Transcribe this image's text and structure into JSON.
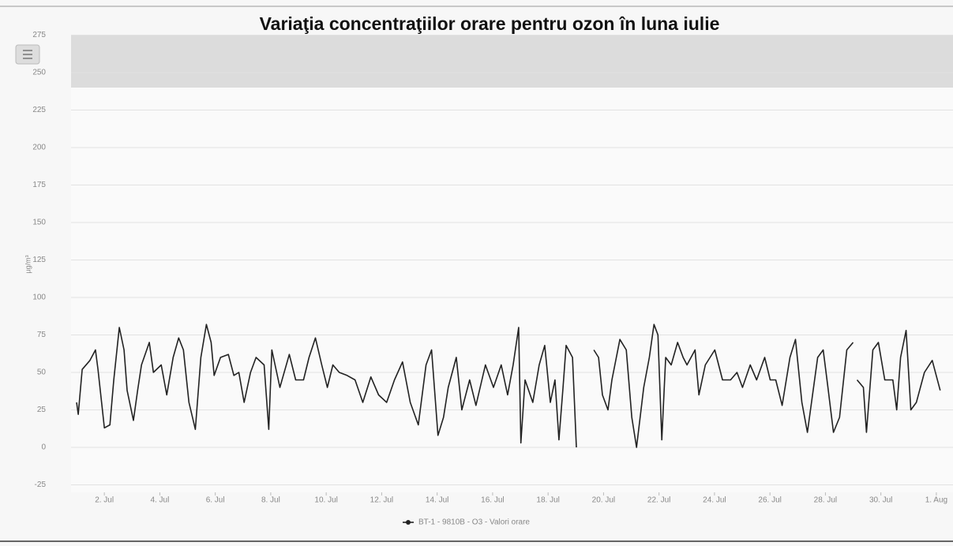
{
  "chart_data": {
    "type": "line",
    "title": "Variaţia concentraţiilor orare pentru ozon în luna iulie",
    "y_label": "µg/m³",
    "ylim": [
      -30,
      275
    ],
    "yticks": [
      -25,
      0,
      25,
      50,
      75,
      100,
      125,
      150,
      175,
      200,
      225,
      250,
      275
    ],
    "xlim": [
      0.8,
      32.6
    ],
    "xticks": [
      {
        "value": 2,
        "label": "2. Jul"
      },
      {
        "value": 4,
        "label": "4. Jul"
      },
      {
        "value": 6,
        "label": "6. Jul"
      },
      {
        "value": 8,
        "label": "8. Jul"
      },
      {
        "value": 10,
        "label": "10. Jul"
      },
      {
        "value": 12,
        "label": "12. Jul"
      },
      {
        "value": 14,
        "label": "14. Jul"
      },
      {
        "value": 16,
        "label": "16. Jul"
      },
      {
        "value": 18,
        "label": "18. Jul"
      },
      {
        "value": 20,
        "label": "20. Jul"
      },
      {
        "value": 22,
        "label": "22. Jul"
      },
      {
        "value": 24,
        "label": "24. Jul"
      },
      {
        "value": 26,
        "label": "26. Jul"
      },
      {
        "value": 28,
        "label": "28. Jul"
      },
      {
        "value": 30,
        "label": "30. Jul"
      },
      {
        "value": 32,
        "label": "1. Aug"
      }
    ],
    "grid": true,
    "plot_band": [
      240,
      275
    ],
    "series": [
      {
        "name": "BT-1 - 9810B - O3 - Valori orare",
        "color": "#222222",
        "x": [
          1.0,
          1.06,
          1.2,
          1.48,
          1.68,
          1.77,
          2.0,
          2.2,
          2.34,
          2.54,
          2.71,
          2.82,
          3.05,
          3.2,
          3.34,
          3.62,
          3.77,
          4.05,
          4.25,
          4.48,
          4.68,
          4.85,
          5.05,
          5.28,
          5.48,
          5.68,
          5.85,
          5.96,
          6.19,
          6.47,
          6.67,
          6.85,
          7.04,
          7.27,
          7.47,
          7.76,
          7.93,
          8.04,
          8.33,
          8.67,
          8.9,
          9.18,
          9.38,
          9.61,
          9.84,
          10.04,
          10.24,
          10.47,
          10.75,
          11.04,
          11.32,
          11.61,
          11.89,
          12.18,
          12.46,
          12.75,
          13.03,
          13.32,
          13.6,
          13.8,
          14.03,
          14.23,
          14.4,
          14.69,
          14.89,
          15.17,
          15.4,
          15.74,
          16.03,
          16.31,
          16.54,
          16.74,
          16.94,
          17.02,
          17.17,
          17.45,
          17.68,
          17.88,
          18.08,
          18.25,
          18.39,
          18.54,
          18.65,
          18.88,
          19.02,
          19.3,
          19.65,
          19.82,
          19.96,
          20.16,
          20.3,
          20.59,
          20.82,
          21.02,
          21.19,
          21.45,
          21.65,
          21.82,
          21.96,
          22.1,
          22.24,
          22.44,
          22.67,
          22.87,
          23.01,
          23.3,
          23.44,
          23.67,
          24.01,
          24.29,
          24.58,
          24.81,
          25.01,
          25.29,
          25.52,
          25.81,
          26.01,
          26.21,
          26.44,
          26.72,
          26.92,
          27.15,
          27.35,
          27.72,
          27.92,
          28.09,
          28.29,
          28.51,
          28.77,
          29.0,
          29.07,
          29.14,
          29.37,
          29.48,
          29.71,
          29.91,
          30.14,
          30.43,
          30.57,
          30.71,
          30.91,
          31.08,
          31.28,
          31.57,
          31.85,
          32.14
        ],
        "values": [
          30,
          22,
          52,
          58,
          65,
          52,
          13,
          15,
          45,
          80,
          65,
          38,
          18,
          38,
          55,
          70,
          50,
          55,
          35,
          60,
          73,
          65,
          30,
          12,
          60,
          82,
          70,
          48,
          60,
          62,
          48,
          50,
          30,
          50,
          60,
          55,
          12,
          65,
          40,
          62,
          45,
          45,
          60,
          73,
          55,
          40,
          55,
          50,
          48,
          45,
          30,
          47,
          35,
          30,
          45,
          57,
          30,
          15,
          55,
          65,
          8,
          20,
          40,
          60,
          25,
          45,
          28,
          55,
          40,
          55,
          35,
          55,
          80,
          3,
          45,
          30,
          55,
          68,
          30,
          45,
          5,
          40,
          68,
          60,
          0,
          null,
          65,
          60,
          35,
          25,
          45,
          72,
          65,
          20,
          0,
          40,
          60,
          82,
          75,
          5,
          60,
          55,
          70,
          60,
          55,
          65,
          35,
          55,
          65,
          45,
          45,
          50,
          40,
          55,
          45,
          60,
          45,
          45,
          28,
          60,
          72,
          30,
          10,
          60,
          65,
          40,
          10,
          20,
          65,
          70,
          null,
          45,
          40,
          10,
          65,
          70,
          45,
          45,
          25,
          60,
          78,
          25,
          30,
          50,
          58,
          38
        ]
      }
    ]
  }
}
